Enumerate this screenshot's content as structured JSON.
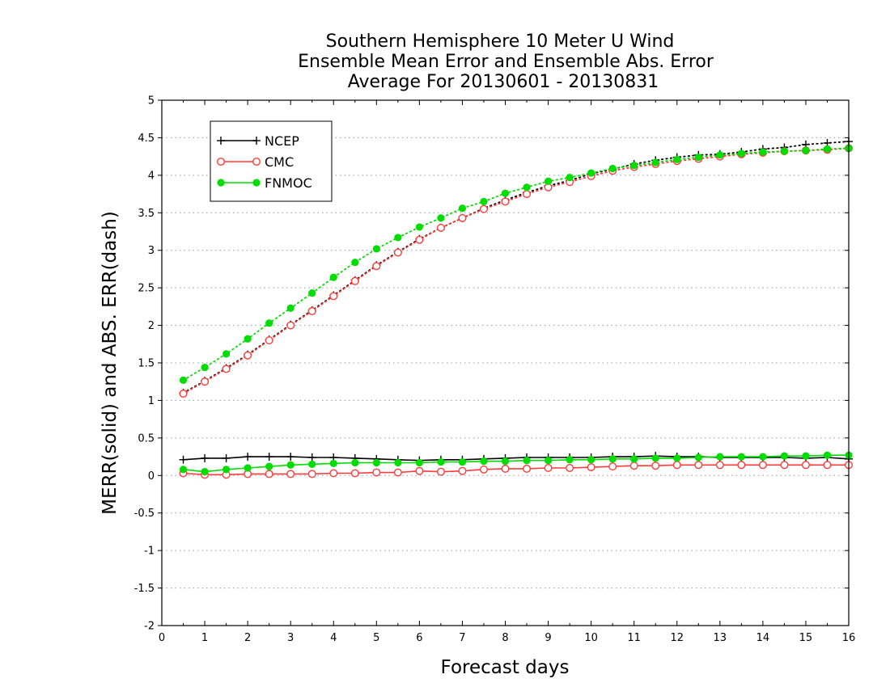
{
  "chart_data": {
    "type": "line",
    "title_lines": [
      "Southern Hemisphere 10 Meter U Wind",
      "Ensemble Mean Error and Ensemble Abs. Error",
      "Average For 20130601 - 20130831"
    ],
    "xlabel": "Forecast days",
    "ylabel": "MERR(solid) and ABS. ERR(dash)",
    "xlim": [
      0,
      16
    ],
    "ylim": [
      -2,
      5
    ],
    "xticks": [
      "0",
      "1",
      "2",
      "3",
      "4",
      "5",
      "6",
      "7",
      "8",
      "9",
      "10",
      "11",
      "12",
      "13",
      "14",
      "15",
      "16"
    ],
    "yticks": [
      "-2",
      "-1.5",
      "-1",
      "-0.5",
      "0",
      "0.5",
      "1",
      "1.5",
      "2",
      "2.5",
      "3",
      "3.5",
      "4",
      "4.5",
      "5"
    ],
    "grid": "horizontal dotted",
    "legend_position": "top-left",
    "x": [
      0.5,
      1,
      1.5,
      2,
      2.5,
      3,
      3.5,
      4,
      4.5,
      5,
      5.5,
      6,
      6.5,
      7,
      7.5,
      8,
      8.5,
      9,
      9.5,
      10,
      10.5,
      11,
      11.5,
      12,
      12.5,
      13,
      13.5,
      14,
      14.5,
      15,
      15.5,
      16
    ],
    "series": [
      {
        "name": "NCEP",
        "color": "#000000",
        "marker": "plus",
        "merr": [
          0.21,
          0.23,
          0.23,
          0.25,
          0.25,
          0.25,
          0.24,
          0.24,
          0.23,
          0.22,
          0.21,
          0.2,
          0.21,
          0.21,
          0.22,
          0.23,
          0.24,
          0.24,
          0.24,
          0.24,
          0.25,
          0.25,
          0.26,
          0.25,
          0.25,
          0.24,
          0.24,
          0.24,
          0.24,
          0.23,
          0.24,
          0.22
        ],
        "abs_err": [
          1.1,
          1.26,
          1.43,
          1.61,
          1.81,
          2.01,
          2.2,
          2.4,
          2.6,
          2.8,
          2.98,
          3.15,
          3.3,
          3.43,
          3.56,
          3.67,
          3.77,
          3.86,
          3.93,
          4.02,
          4.08,
          4.15,
          4.2,
          4.24,
          4.27,
          4.28,
          4.31,
          4.35,
          4.37,
          4.41,
          4.43,
          4.45
        ]
      },
      {
        "name": "CMC",
        "color": "#ff3b3b",
        "marker": "open-circle",
        "merr": [
          0.03,
          0.01,
          0.01,
          0.02,
          0.02,
          0.02,
          0.02,
          0.03,
          0.03,
          0.04,
          0.04,
          0.06,
          0.05,
          0.06,
          0.08,
          0.09,
          0.09,
          0.1,
          0.1,
          0.11,
          0.12,
          0.13,
          0.13,
          0.14,
          0.14,
          0.14,
          0.14,
          0.14,
          0.14,
          0.14,
          0.14,
          0.14
        ],
        "abs_err": [
          1.09,
          1.25,
          1.42,
          1.6,
          1.8,
          2.0,
          2.19,
          2.39,
          2.59,
          2.79,
          2.97,
          3.14,
          3.3,
          3.43,
          3.55,
          3.65,
          3.75,
          3.84,
          3.91,
          3.99,
          4.06,
          4.11,
          4.15,
          4.19,
          4.22,
          4.25,
          4.28,
          4.3,
          4.32,
          4.33,
          4.34,
          4.36
        ]
      },
      {
        "name": "FNMOC",
        "color": "#00dd00",
        "marker": "filled-circle",
        "merr": [
          0.08,
          0.05,
          0.08,
          0.1,
          0.12,
          0.14,
          0.15,
          0.16,
          0.17,
          0.17,
          0.17,
          0.17,
          0.18,
          0.18,
          0.19,
          0.19,
          0.2,
          0.2,
          0.21,
          0.21,
          0.22,
          0.22,
          0.23,
          0.23,
          0.24,
          0.25,
          0.25,
          0.25,
          0.26,
          0.26,
          0.27,
          0.27
        ],
        "abs_err": [
          1.27,
          1.44,
          1.62,
          1.82,
          2.03,
          2.23,
          2.43,
          2.64,
          2.84,
          3.02,
          3.17,
          3.31,
          3.43,
          3.56,
          3.65,
          3.76,
          3.84,
          3.92,
          3.97,
          4.03,
          4.09,
          4.13,
          4.17,
          4.21,
          4.24,
          4.27,
          4.29,
          4.31,
          4.32,
          4.33,
          4.35,
          4.36
        ]
      }
    ]
  }
}
